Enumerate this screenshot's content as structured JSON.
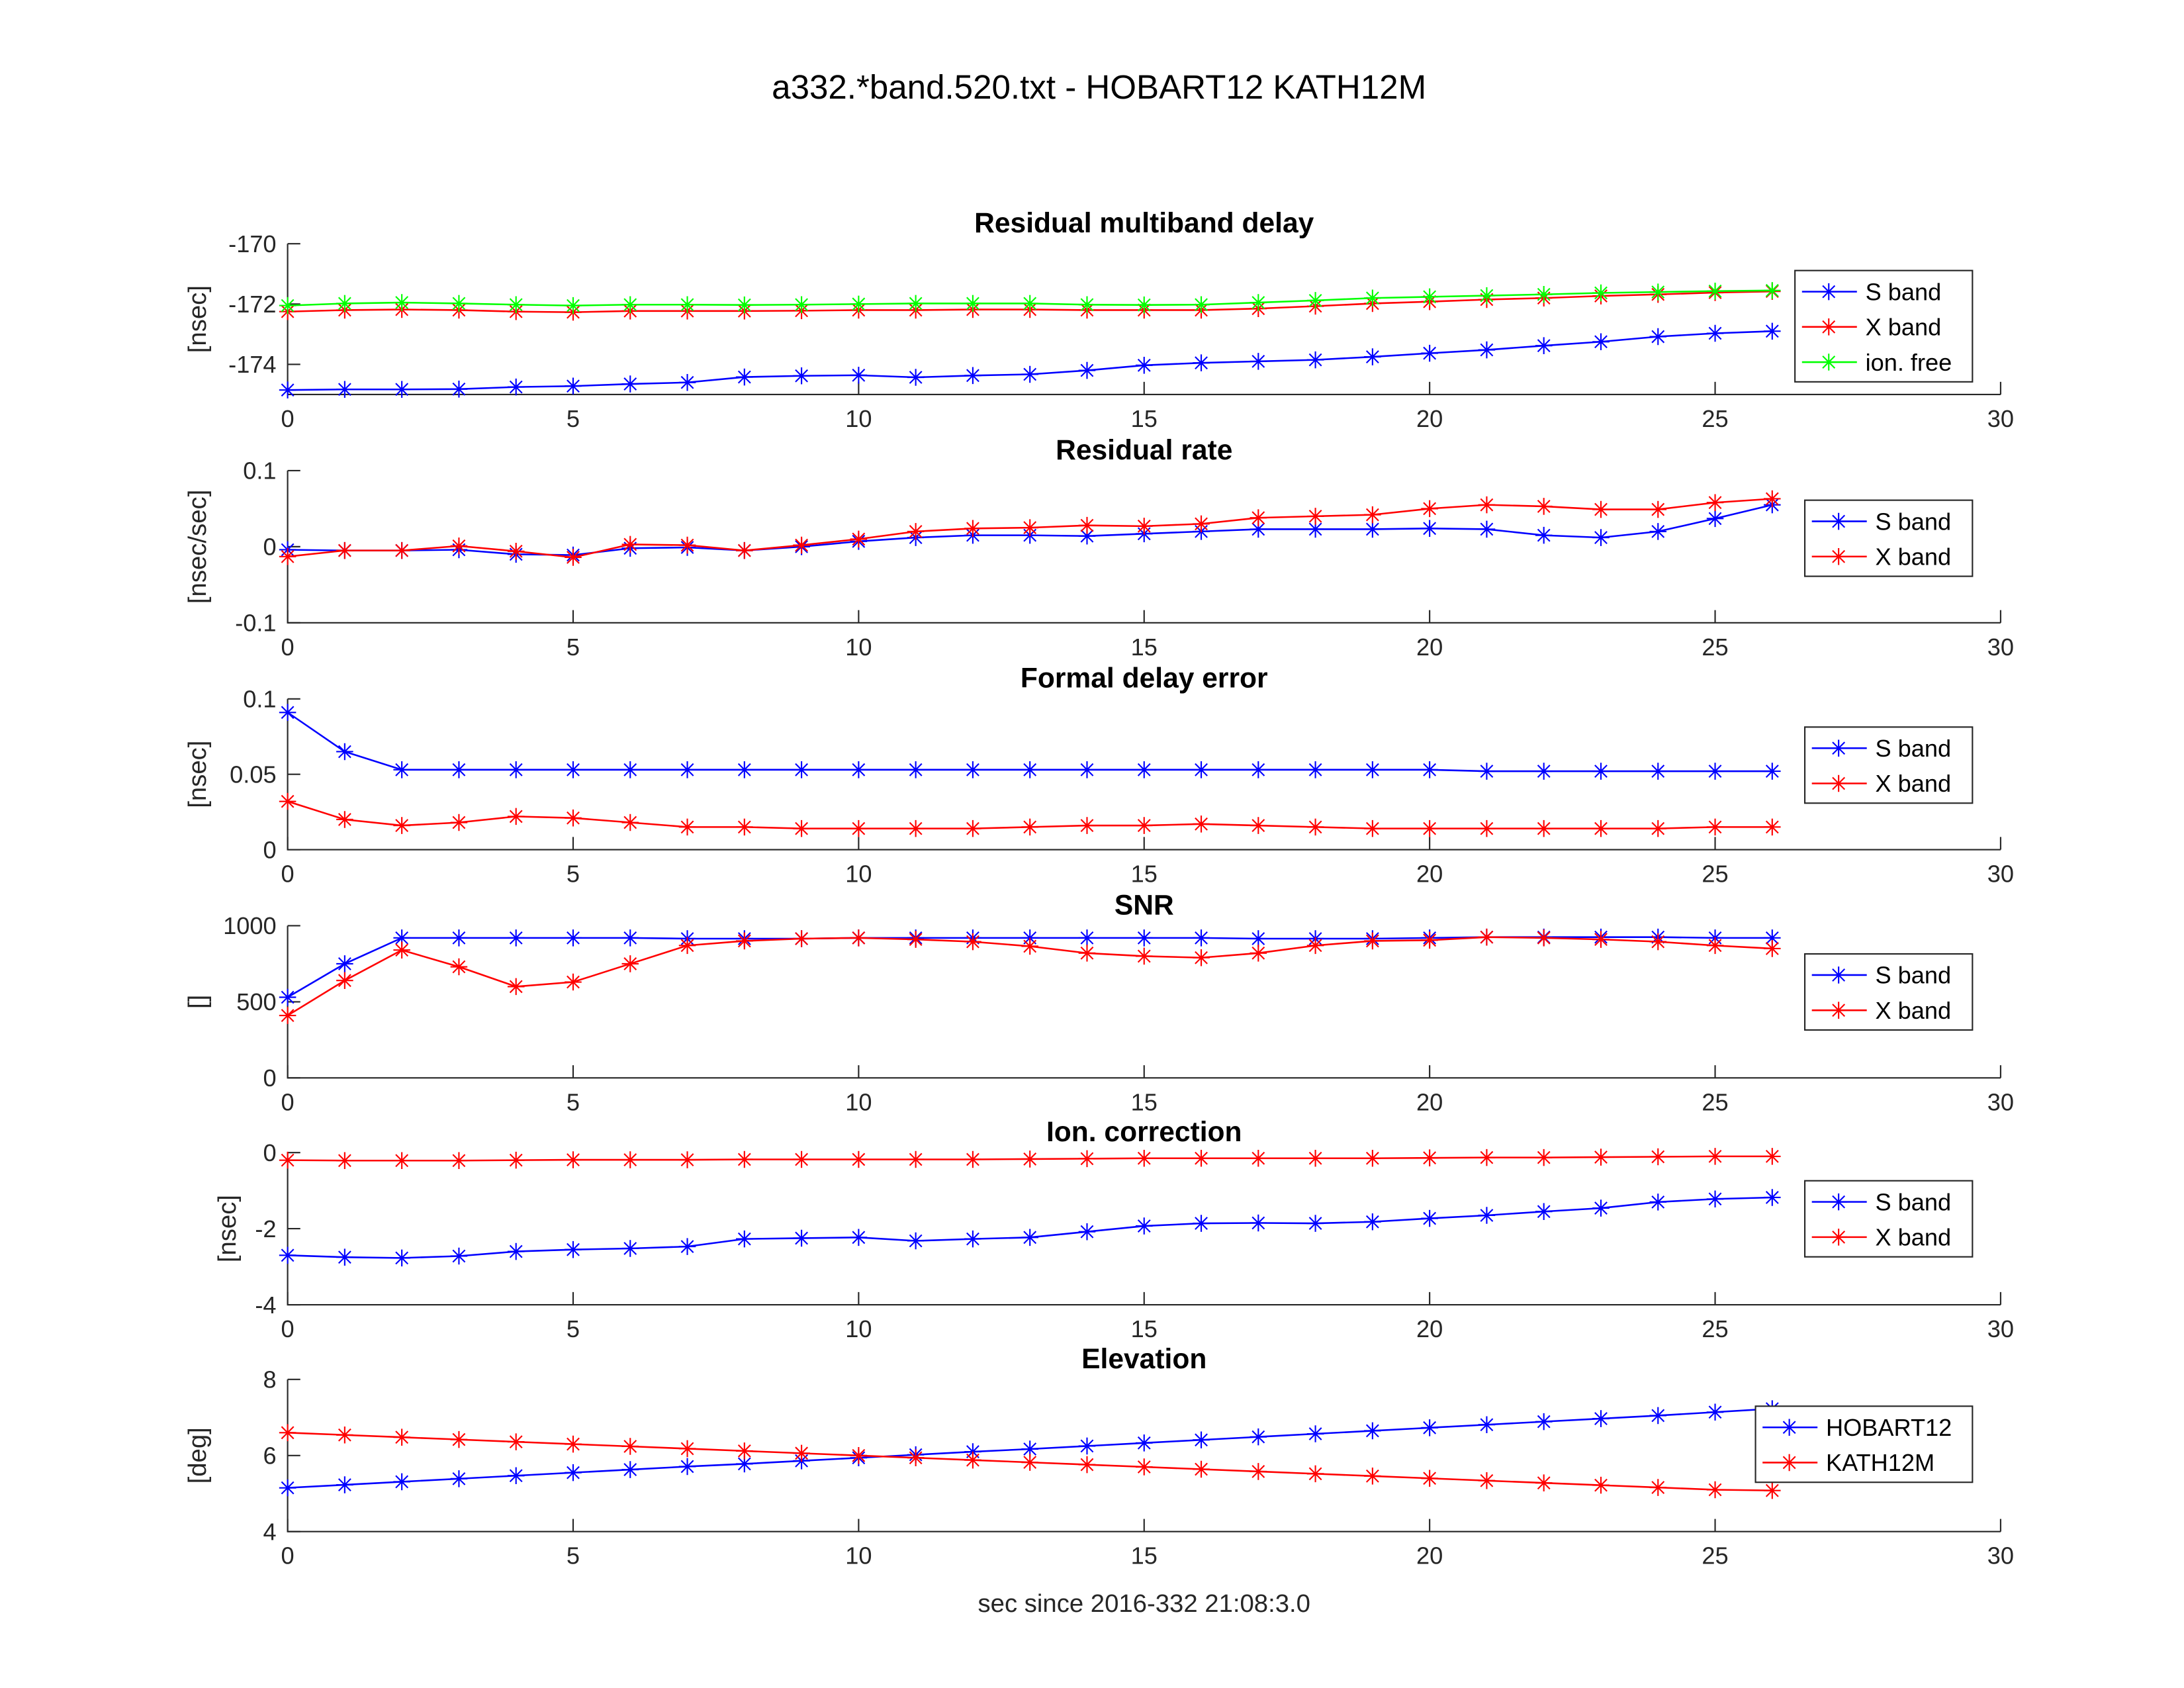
{
  "figure_title": "a332.*band.520.txt - HOBART12 KATH12M",
  "xlabel": "sec since 2016-332 21:08:3.0",
  "colors": {
    "S": "#0000ff",
    "X": "#ff0000",
    "ion": "#00ff00"
  },
  "chart_data": [
    {
      "type": "line",
      "title": "Residual multiband delay",
      "ylabel": "[nsec]",
      "xlim": [
        0,
        30
      ],
      "ylim": [
        -175,
        -170
      ],
      "xticks": [
        0,
        5,
        10,
        15,
        20,
        25,
        30
      ],
      "yticks": [
        -174,
        -172,
        -170
      ],
      "legend": "right",
      "x": [
        0,
        1,
        2,
        3,
        4,
        5,
        6,
        7,
        8,
        9,
        10,
        11,
        12,
        13,
        14,
        15,
        16,
        17,
        18,
        19,
        20,
        21,
        22,
        23,
        24,
        25,
        26
      ],
      "series": [
        {
          "name": "S band",
          "color": "#0000ff",
          "values": [
            -174.85,
            -174.83,
            -174.83,
            -174.82,
            -174.75,
            -174.72,
            -174.65,
            -174.6,
            -174.42,
            -174.38,
            -174.36,
            -174.43,
            -174.37,
            -174.33,
            -174.2,
            -174.03,
            -173.95,
            -173.9,
            -173.85,
            -173.75,
            -173.63,
            -173.52,
            -173.38,
            -173.25,
            -173.08,
            -172.97,
            -172.9
          ]
        },
        {
          "name": "X band",
          "color": "#ff0000",
          "values": [
            -172.25,
            -172.2,
            -172.18,
            -172.2,
            -172.25,
            -172.27,
            -172.23,
            -172.23,
            -172.23,
            -172.22,
            -172.2,
            -172.2,
            -172.18,
            -172.18,
            -172.2,
            -172.2,
            -172.2,
            -172.15,
            -172.07,
            -171.98,
            -171.92,
            -171.85,
            -171.8,
            -171.73,
            -171.68,
            -171.62,
            -171.58
          ]
        },
        {
          "name": "ion. free",
          "color": "#00ff00",
          "values": [
            -172.05,
            -171.98,
            -171.95,
            -171.98,
            -172.02,
            -172.05,
            -172.02,
            -172.02,
            -172.03,
            -172.02,
            -172.0,
            -171.98,
            -171.98,
            -171.98,
            -172.02,
            -172.03,
            -172.02,
            -171.95,
            -171.88,
            -171.8,
            -171.76,
            -171.72,
            -171.68,
            -171.63,
            -171.6,
            -171.57,
            -171.55
          ]
        }
      ]
    },
    {
      "type": "line",
      "title": "Residual rate",
      "ylabel": "[nsec/sec]",
      "xlim": [
        0,
        30
      ],
      "ylim": [
        -0.1,
        0.1
      ],
      "xticks": [
        0,
        5,
        10,
        15,
        20,
        25,
        30
      ],
      "yticks": [
        -0.1,
        0,
        0.1
      ],
      "legend": "right",
      "x": [
        0,
        1,
        2,
        3,
        4,
        5,
        6,
        7,
        8,
        9,
        10,
        11,
        12,
        13,
        14,
        15,
        16,
        17,
        18,
        19,
        20,
        21,
        22,
        23,
        24,
        25,
        26
      ],
      "series": [
        {
          "name": "S band",
          "color": "#0000ff",
          "values": [
            -0.004,
            -0.005,
            -0.005,
            -0.004,
            -0.01,
            -0.011,
            -0.002,
            -0.001,
            -0.005,
            0,
            0.007,
            0.012,
            0.015,
            0.015,
            0.014,
            0.017,
            0.02,
            0.023,
            0.023,
            0.023,
            0.024,
            0.023,
            0.015,
            0.012,
            0.02,
            0.037,
            0.055
          ]
        },
        {
          "name": "X band",
          "color": "#ff0000",
          "values": [
            -0.013,
            -0.005,
            -0.005,
            0.001,
            -0.006,
            -0.014,
            0.003,
            0.002,
            -0.005,
            0.002,
            0.01,
            0.02,
            0.024,
            0.025,
            0.028,
            0.027,
            0.03,
            0.038,
            0.04,
            0.042,
            0.05,
            0.055,
            0.053,
            0.049,
            0.049,
            0.058,
            0.063
          ]
        }
      ]
    },
    {
      "type": "line",
      "title": "Formal delay error",
      "ylabel": "[nsec]",
      "xlim": [
        0,
        30
      ],
      "ylim": [
        0,
        0.1
      ],
      "xticks": [
        0,
        5,
        10,
        15,
        20,
        25,
        30
      ],
      "yticks": [
        0,
        0.05,
        0.1
      ],
      "legend": "right",
      "x": [
        0,
        1,
        2,
        3,
        4,
        5,
        6,
        7,
        8,
        9,
        10,
        11,
        12,
        13,
        14,
        15,
        16,
        17,
        18,
        19,
        20,
        21,
        22,
        23,
        24,
        25,
        26
      ],
      "series": [
        {
          "name": "S band",
          "color": "#0000ff",
          "values": [
            0.091,
            0.065,
            0.053,
            0.053,
            0.053,
            0.053,
            0.053,
            0.053,
            0.053,
            0.053,
            0.053,
            0.053,
            0.053,
            0.053,
            0.053,
            0.053,
            0.053,
            0.053,
            0.053,
            0.053,
            0.053,
            0.052,
            0.052,
            0.052,
            0.052,
            0.052,
            0.052
          ]
        },
        {
          "name": "X band",
          "color": "#ff0000",
          "values": [
            0.032,
            0.02,
            0.016,
            0.018,
            0.022,
            0.021,
            0.018,
            0.015,
            0.015,
            0.014,
            0.014,
            0.014,
            0.014,
            0.015,
            0.016,
            0.016,
            0.017,
            0.016,
            0.015,
            0.014,
            0.014,
            0.014,
            0.014,
            0.014,
            0.014,
            0.015,
            0.015
          ]
        }
      ]
    },
    {
      "type": "line",
      "title": "SNR",
      "ylabel": "[]",
      "xlim": [
        0,
        30
      ],
      "ylim": [
        0,
        1000
      ],
      "xticks": [
        0,
        5,
        10,
        15,
        20,
        25,
        30
      ],
      "yticks": [
        0,
        500,
        1000
      ],
      "legend": "right",
      "x": [
        0,
        1,
        2,
        3,
        4,
        5,
        6,
        7,
        8,
        9,
        10,
        11,
        12,
        13,
        14,
        15,
        16,
        17,
        18,
        19,
        20,
        21,
        22,
        23,
        24,
        25,
        26
      ],
      "series": [
        {
          "name": "S band",
          "color": "#0000ff",
          "values": [
            530,
            750,
            920,
            920,
            920,
            920,
            920,
            915,
            915,
            915,
            920,
            920,
            920,
            920,
            920,
            920,
            920,
            915,
            915,
            915,
            920,
            925,
            925,
            925,
            925,
            920,
            920
          ]
        },
        {
          "name": "X band",
          "color": "#ff0000",
          "values": [
            410,
            640,
            840,
            730,
            600,
            630,
            750,
            870,
            900,
            915,
            920,
            910,
            895,
            865,
            820,
            800,
            790,
            820,
            870,
            900,
            905,
            925,
            920,
            910,
            895,
            870,
            850
          ]
        }
      ]
    },
    {
      "type": "line",
      "title": "Ion. correction",
      "ylabel": "[nsec]",
      "xlim": [
        0,
        30
      ],
      "ylim": [
        -4,
        0
      ],
      "xticks": [
        0,
        5,
        10,
        15,
        20,
        25,
        30
      ],
      "yticks": [
        -4,
        -2,
        0
      ],
      "legend": "right",
      "x": [
        0,
        1,
        2,
        3,
        4,
        5,
        6,
        7,
        8,
        9,
        10,
        11,
        12,
        13,
        14,
        15,
        16,
        17,
        18,
        19,
        20,
        21,
        22,
        23,
        24,
        25,
        26
      ],
      "series": [
        {
          "name": "S band",
          "color": "#0000ff",
          "values": [
            -2.7,
            -2.75,
            -2.77,
            -2.72,
            -2.6,
            -2.55,
            -2.52,
            -2.47,
            -2.27,
            -2.25,
            -2.23,
            -2.32,
            -2.27,
            -2.23,
            -2.08,
            -1.93,
            -1.86,
            -1.85,
            -1.86,
            -1.82,
            -1.73,
            -1.65,
            -1.55,
            -1.46,
            -1.3,
            -1.22,
            -1.18
          ]
        },
        {
          "name": "X band",
          "color": "#ff0000",
          "values": [
            -0.2,
            -0.21,
            -0.21,
            -0.21,
            -0.2,
            -0.19,
            -0.19,
            -0.19,
            -0.18,
            -0.18,
            -0.18,
            -0.18,
            -0.18,
            -0.17,
            -0.16,
            -0.15,
            -0.15,
            -0.15,
            -0.15,
            -0.15,
            -0.14,
            -0.13,
            -0.13,
            -0.12,
            -0.11,
            -0.1,
            -0.1
          ]
        }
      ]
    },
    {
      "type": "line",
      "title": "Elevation",
      "ylabel": "[deg]",
      "xlim": [
        0,
        30
      ],
      "ylim": [
        4,
        8
      ],
      "xticks": [
        0,
        5,
        10,
        15,
        20,
        25,
        30
      ],
      "yticks": [
        4,
        6,
        8
      ],
      "legend": "right",
      "x": [
        0,
        1,
        2,
        3,
        4,
        5,
        6,
        7,
        8,
        9,
        10,
        11,
        12,
        13,
        14,
        15,
        16,
        17,
        18,
        19,
        20,
        21,
        22,
        23,
        24,
        25,
        26
      ],
      "series": [
        {
          "name": "HOBART12",
          "color": "#0000ff",
          "values": [
            5.15,
            5.23,
            5.31,
            5.39,
            5.47,
            5.55,
            5.63,
            5.71,
            5.78,
            5.86,
            5.94,
            6.02,
            6.1,
            6.17,
            6.25,
            6.33,
            6.41,
            6.49,
            6.57,
            6.65,
            6.73,
            6.81,
            6.89,
            6.97,
            7.05,
            7.14,
            7.23
          ]
        },
        {
          "name": "KATH12M",
          "color": "#ff0000",
          "values": [
            6.6,
            6.54,
            6.48,
            6.42,
            6.36,
            6.3,
            6.24,
            6.18,
            6.12,
            6.06,
            6.0,
            5.94,
            5.88,
            5.82,
            5.76,
            5.7,
            5.64,
            5.58,
            5.52,
            5.46,
            5.4,
            5.34,
            5.28,
            5.22,
            5.16,
            5.1,
            5.08
          ]
        }
      ]
    }
  ]
}
